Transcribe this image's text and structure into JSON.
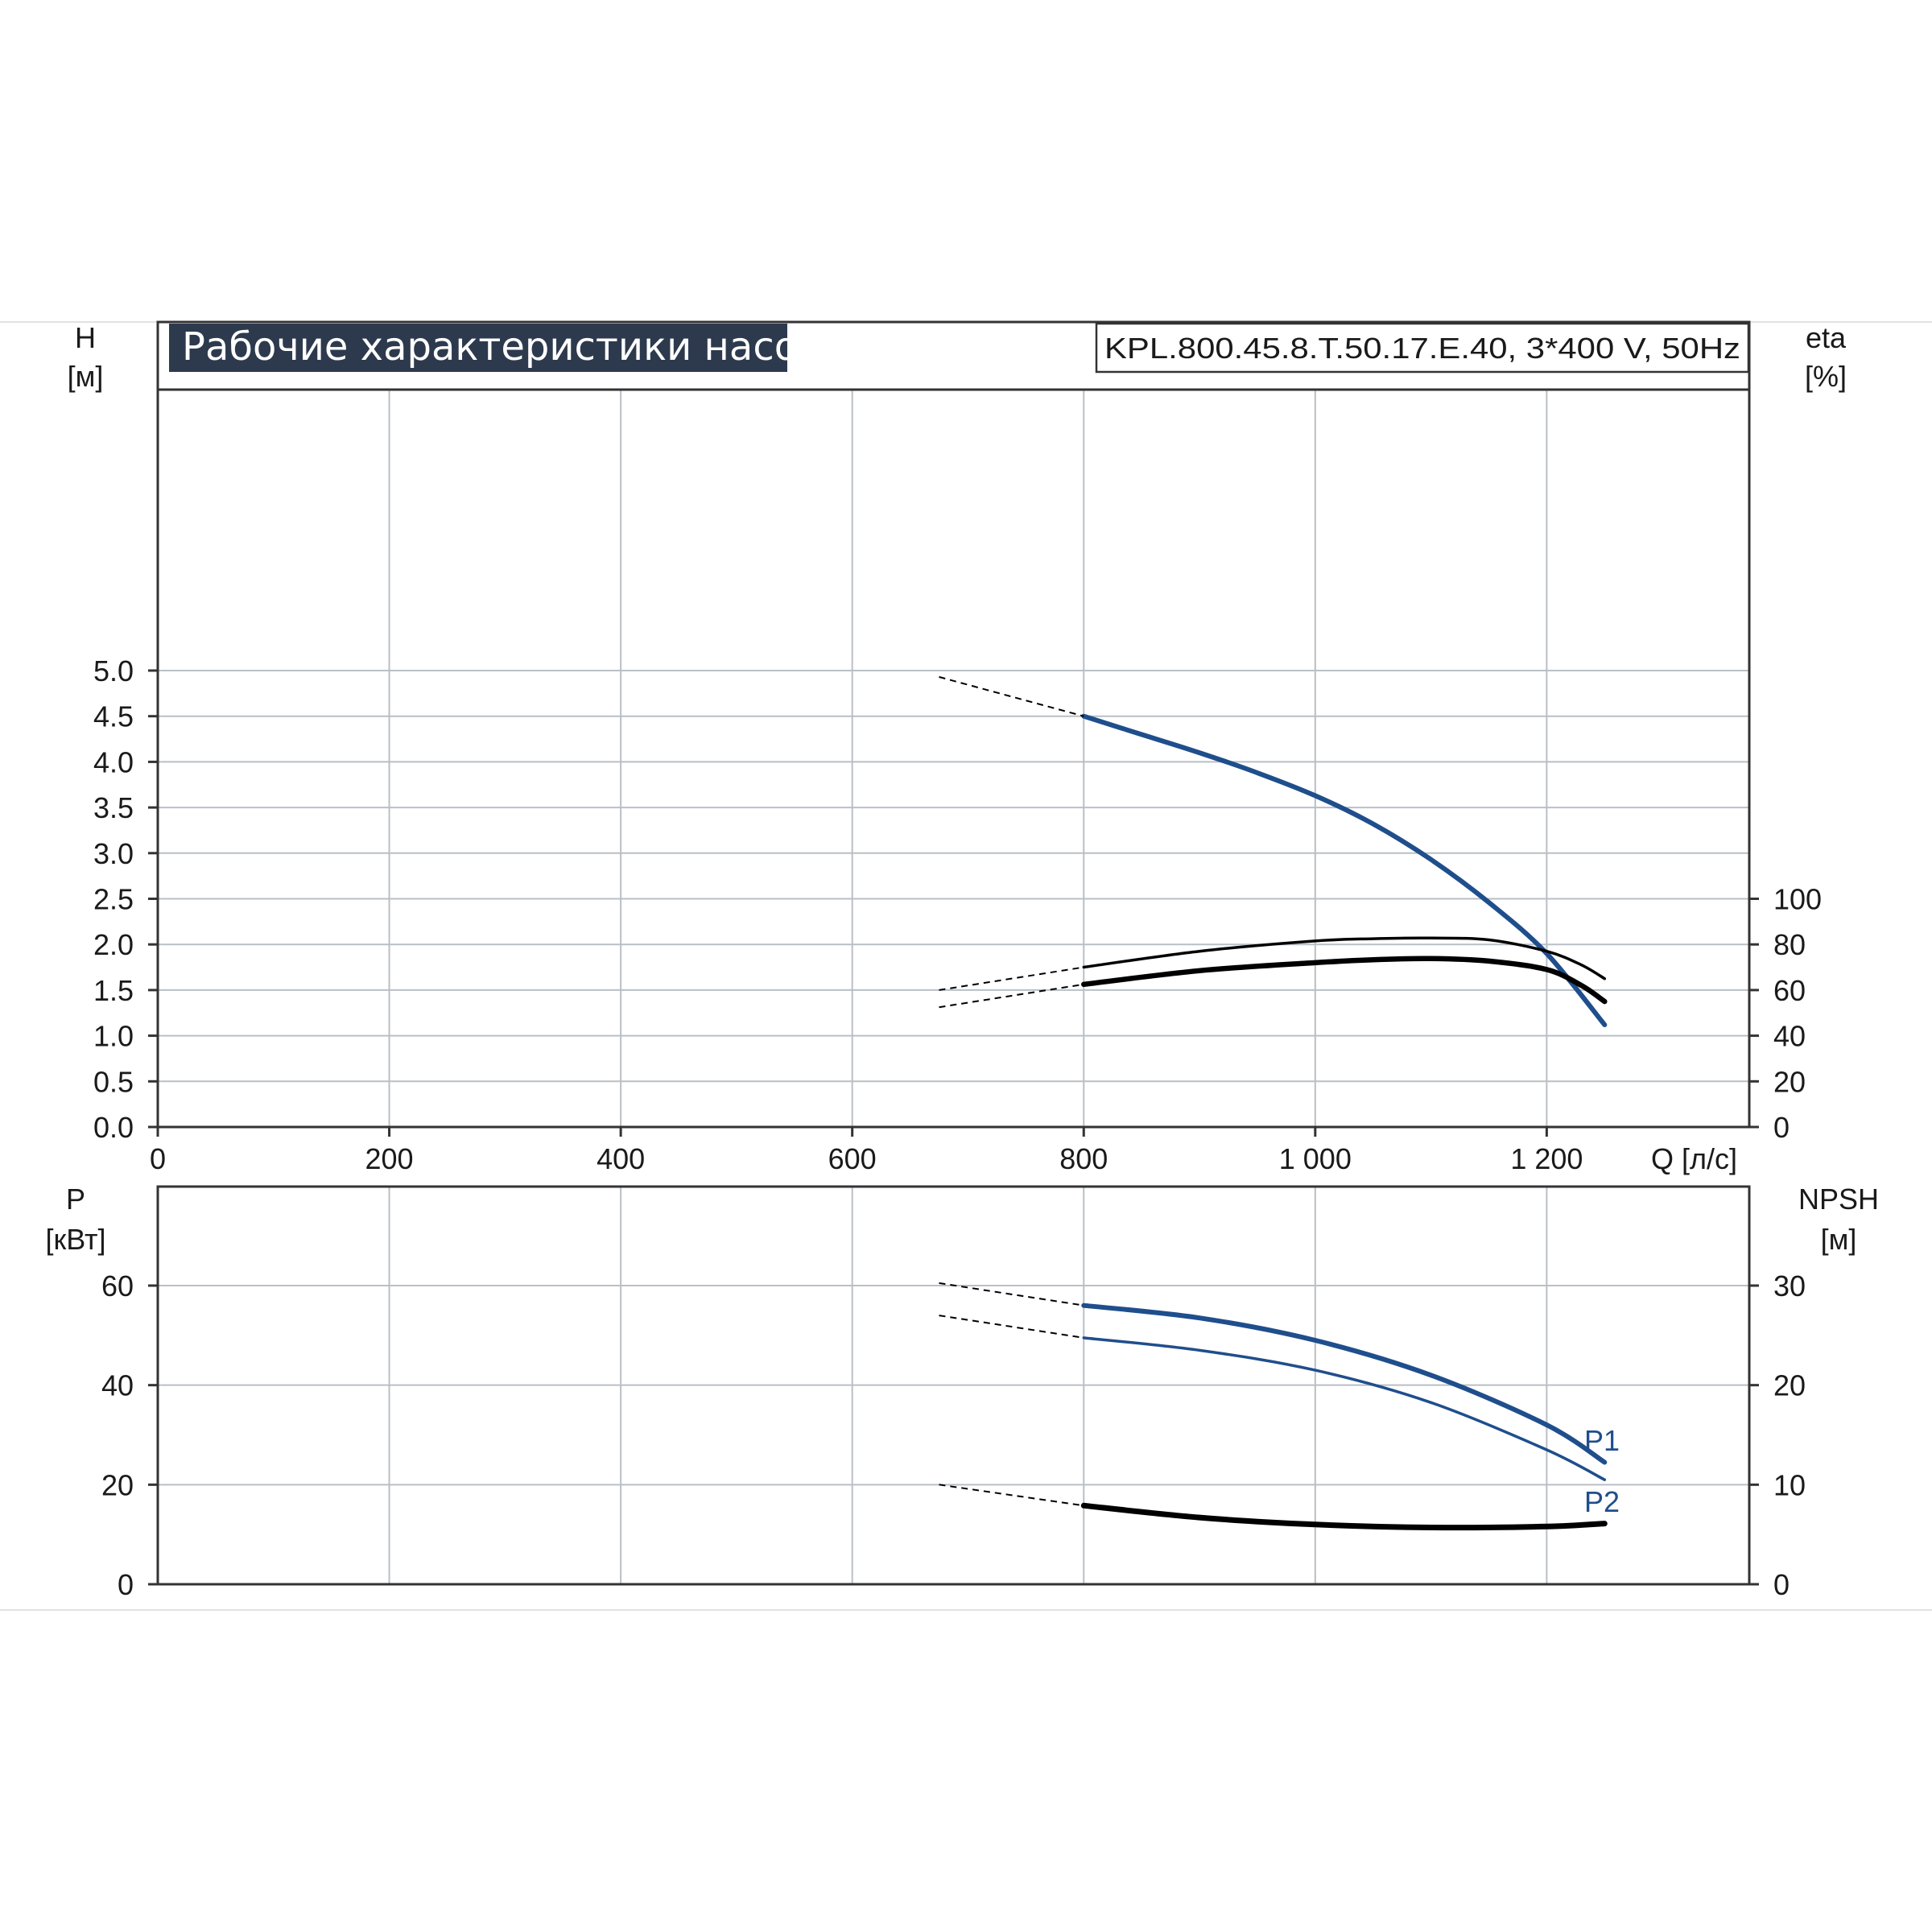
{
  "chart_data": [
    {
      "type": "line",
      "title": "Рабочие характеристики насоса",
      "model_label": "KPL.800.45.8.T.50.17.E.40, 3*400 V, 50Hz",
      "xlabel": "Q [л/с]",
      "x_ticks": [
        "0",
        "200",
        "400",
        "600",
        "800",
        "1 000",
        "1 200"
      ],
      "xlim": [
        0,
        1375
      ],
      "y_left": {
        "label": "H",
        "unit": "[м]",
        "ylim": [
          0,
          5.0
        ],
        "ticks": [
          "0.0",
          "0.5",
          "1.0",
          "1.5",
          "2.0",
          "2.5",
          "3.0",
          "3.5",
          "4.0",
          "4.5",
          "5.0"
        ]
      },
      "y_right": {
        "label": "eta",
        "unit": "[%]",
        "ylim": [
          0,
          100
        ],
        "ticks": [
          "0",
          "20",
          "40",
          "60",
          "80",
          "100"
        ]
      },
      "grid": true,
      "series": [
        {
          "axis": "left",
          "color": "#1f4e8c",
          "x": [
            800,
            850,
            900,
            950,
            1000,
            1050,
            1100,
            1150,
            1200,
            1250
          ],
          "y": [
            4.5,
            4.3,
            4.1,
            3.88,
            3.63,
            3.32,
            2.93,
            2.46,
            1.9,
            1.12
          ],
          "extrapolated": {
            "x": [
              675,
              800
            ],
            "y": [
              4.93,
              4.5
            ]
          }
        },
        {
          "axis": "right",
          "color": "#000000",
          "x": [
            800,
            900,
            1000,
            1050,
            1100,
            1150,
            1200,
            1230,
            1250
          ],
          "y": [
            70,
            77,
            81.5,
            82.5,
            82.8,
            82,
            77,
            71,
            65
          ],
          "extrapolated": {
            "x": [
              675,
              800
            ],
            "y": [
              60,
              70
            ]
          }
        },
        {
          "axis": "right",
          "color": "#000000",
          "x": [
            800,
            900,
            1000,
            1050,
            1100,
            1150,
            1200,
            1230,
            1250
          ],
          "y": [
            62.5,
            68.5,
            72,
            73.3,
            73.8,
            72.7,
            69,
            62,
            55
          ],
          "extrapolated": {
            "x": [
              675,
              800
            ],
            "y": [
              52.5,
              62.5
            ]
          }
        }
      ]
    },
    {
      "type": "line",
      "xlim": [
        0,
        1375
      ],
      "y_left": {
        "label": "P",
        "unit": "[кВт]",
        "ylim": [
          0,
          80
        ],
        "ticks": [
          "0",
          "20",
          "40",
          "60"
        ]
      },
      "y_right": {
        "label": "NPSH",
        "unit": "[м]",
        "ylim": [
          0,
          40
        ],
        "ticks": [
          "0",
          "10",
          "20",
          "30"
        ]
      },
      "grid": true,
      "series": [
        {
          "name": "P1",
          "axis": "left",
          "color": "#1f4e8c",
          "x": [
            800,
            900,
            1000,
            1100,
            1200,
            1250
          ],
          "y": [
            56,
            53.5,
            49,
            42,
            32,
            24.5
          ],
          "extrapolated": {
            "x": [
              675,
              800
            ],
            "y": [
              60.5,
              56
            ]
          }
        },
        {
          "name": "P2",
          "axis": "left",
          "color": "#1f4e8c",
          "x": [
            800,
            900,
            1000,
            1100,
            1200,
            1250
          ],
          "y": [
            49.5,
            47,
            43,
            36.5,
            27,
            21
          ],
          "extrapolated": {
            "x": [
              675,
              800
            ],
            "y": [
              54,
              49.5
            ]
          }
        },
        {
          "axis": "right",
          "color": "#000000",
          "x": [
            800,
            900,
            1000,
            1100,
            1200,
            1250
          ],
          "y": [
            7.9,
            6.7,
            6.0,
            5.7,
            5.8,
            6.1
          ],
          "extrapolated": {
            "x": [
              675,
              800
            ],
            "y": [
              10,
              7.9
            ]
          }
        }
      ]
    }
  ]
}
